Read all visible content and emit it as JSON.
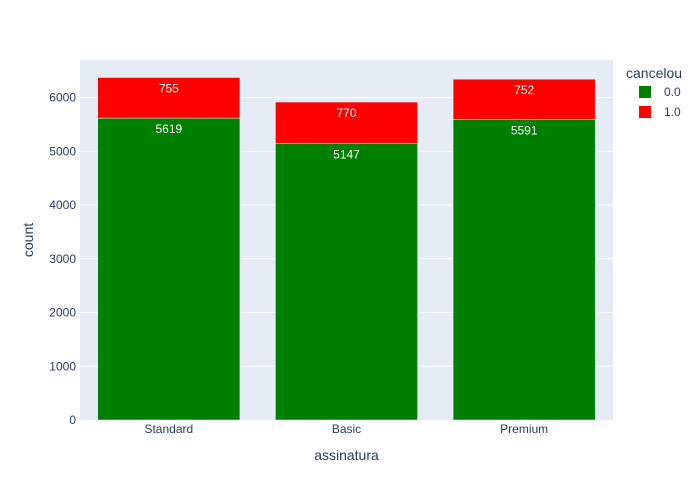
{
  "chart_data": {
    "type": "bar",
    "barmode": "stack",
    "categories": [
      "Standard",
      "Basic",
      "Premium"
    ],
    "series": [
      {
        "name": "0.0",
        "values": [
          5619,
          5147,
          5591
        ],
        "color": "#008000"
      },
      {
        "name": "1.0",
        "values": [
          755,
          770,
          752
        ],
        "color": "#ff0000"
      }
    ],
    "xlabel": "assinatura",
    "ylabel": "count",
    "ylim": [
      0,
      6700
    ],
    "yticks": [
      0,
      1000,
      2000,
      3000,
      4000,
      5000,
      6000
    ],
    "grid": true,
    "legend": {
      "title": "cancelou",
      "placement": "top-right"
    },
    "background": "#e5ecf6"
  }
}
